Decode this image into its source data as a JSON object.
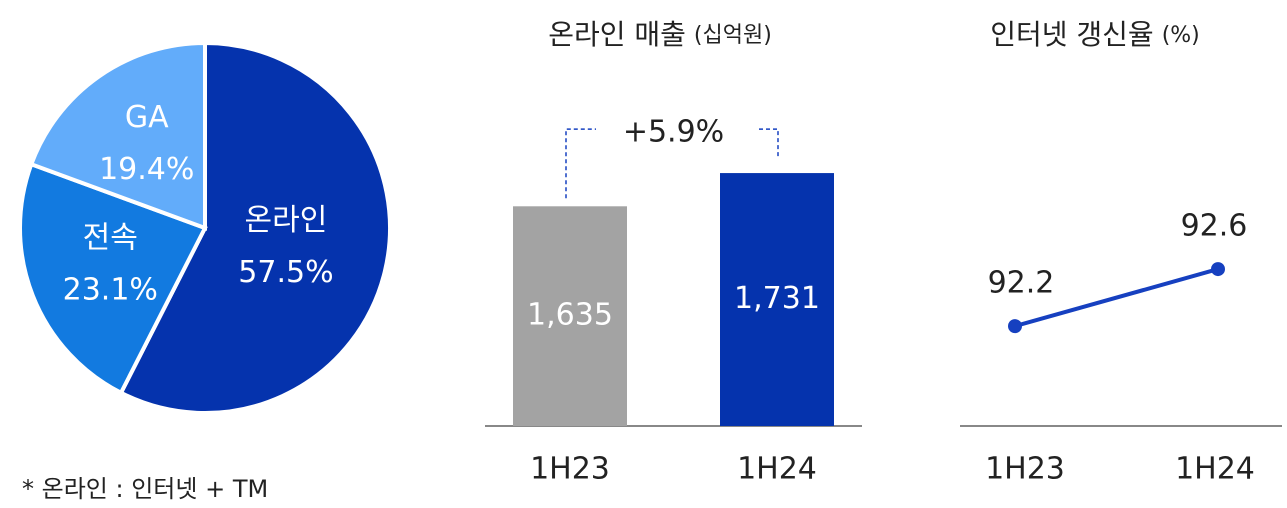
{
  "chart_data": [
    {
      "type": "pie",
      "categories": [
        "온라인",
        "전속",
        "GA"
      ],
      "values": [
        57.5,
        23.1,
        19.4
      ],
      "value_labels": [
        "57.5%",
        "23.1%",
        "19.4%"
      ],
      "colors": [
        "#0533ad",
        "#127ae0",
        "#62acfa"
      ]
    },
    {
      "type": "bar",
      "title": "온라인 매출",
      "subtitle": "(십억원)",
      "categories": [
        "1H23",
        "1H24"
      ],
      "values": [
        1635,
        1731
      ],
      "value_labels": [
        "1,635",
        "1,731"
      ],
      "colors": [
        "#a3a3a3",
        "#0533ad"
      ],
      "ylim": [
        1000,
        2000
      ],
      "annotation": "+5.9%"
    },
    {
      "type": "line",
      "title": "인터넷 갱신율",
      "subtitle": "(%)",
      "categories": [
        "1H23",
        "1H24"
      ],
      "values": [
        92.2,
        92.6
      ],
      "color": "#1640c0",
      "ylim": [
        91.5,
        93
      ]
    }
  ],
  "footnote": "* 온라인 : 인터넷 + TM"
}
